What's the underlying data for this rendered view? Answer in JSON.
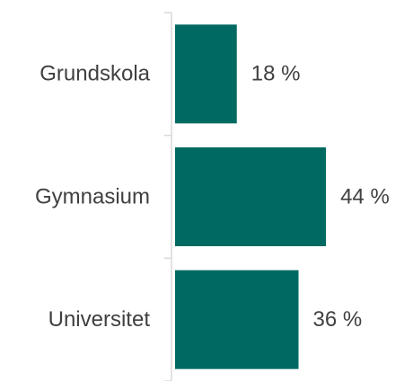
{
  "chart_data": {
    "type": "barh",
    "categories": [
      "Grundskola",
      "Gymnasium",
      "Universitet"
    ],
    "values": [
      18,
      44,
      36
    ],
    "value_labels": [
      "18 %",
      "44 %",
      "36 %"
    ],
    "color": "#006a62"
  }
}
